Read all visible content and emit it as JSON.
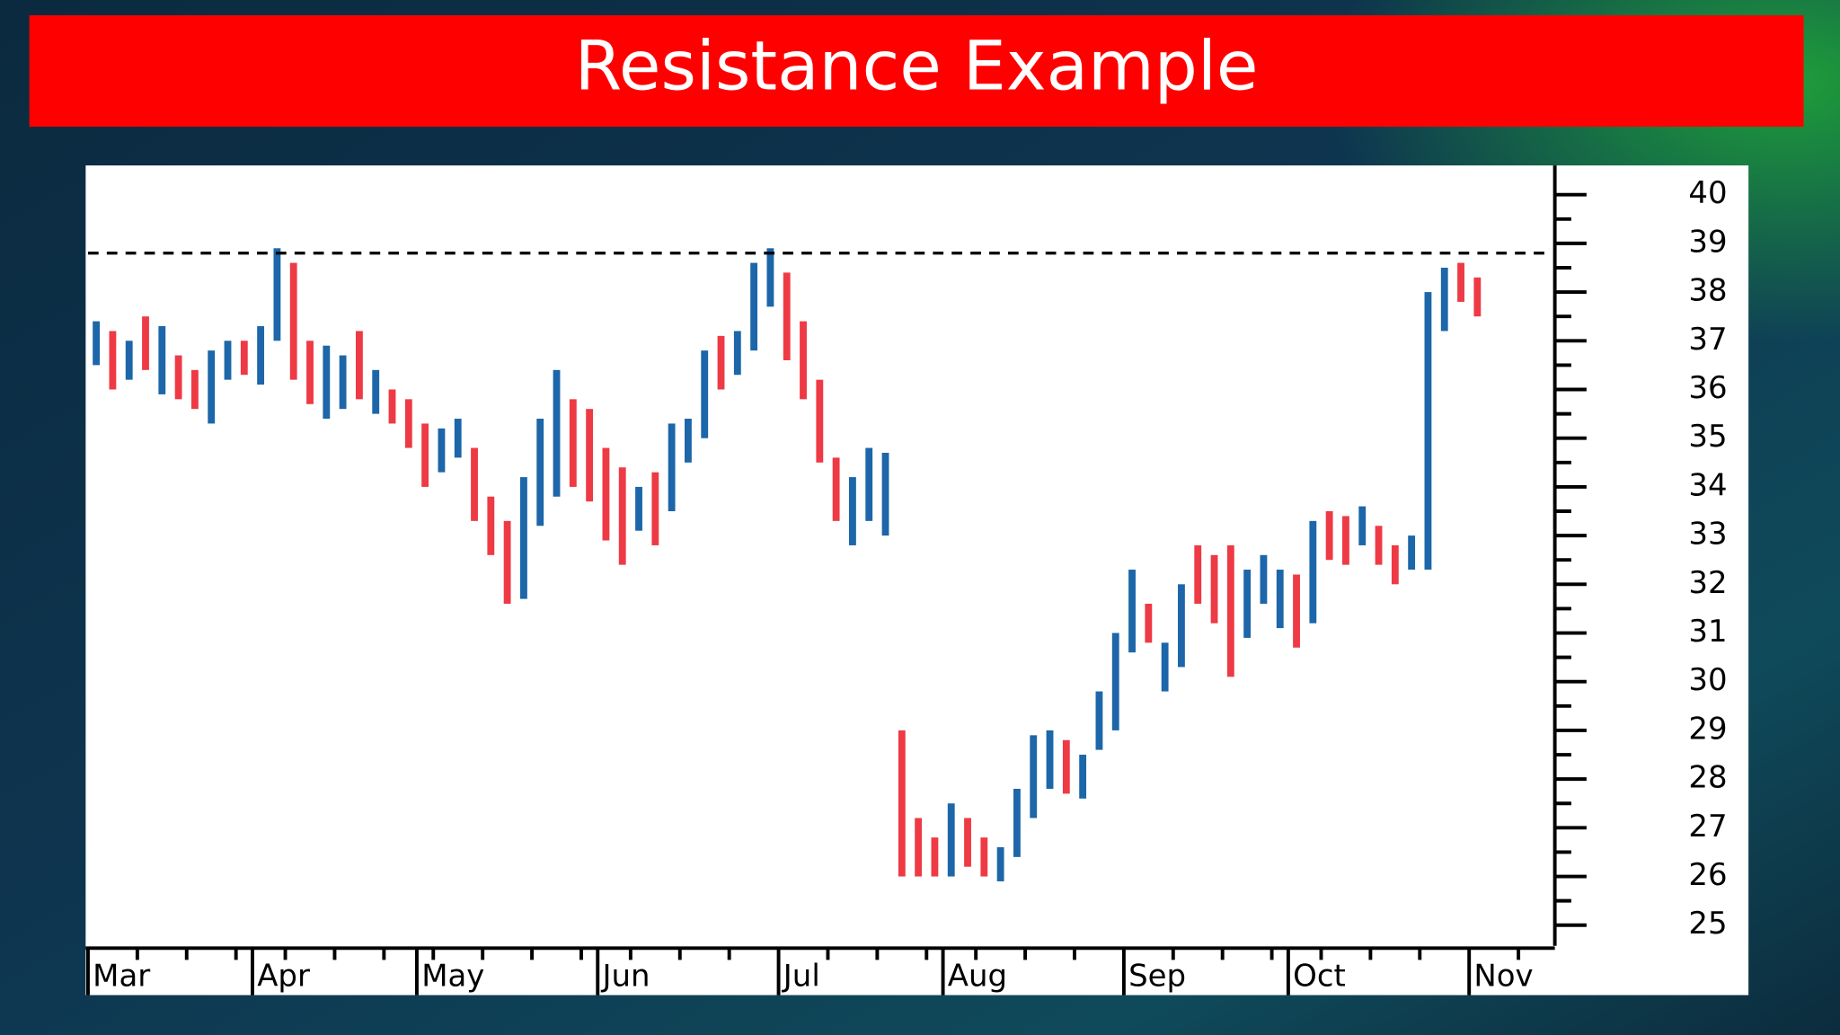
{
  "chart_data": {
    "type": "range_bar",
    "title": "Resistance Example",
    "categories": [
      "Mar",
      null,
      null,
      null,
      null,
      null,
      null,
      null,
      null,
      null,
      "Apr",
      null,
      null,
      null,
      null,
      null,
      null,
      null,
      null,
      null,
      "May",
      null,
      null,
      null,
      null,
      null,
      null,
      null,
      null,
      null,
      null,
      "Jun",
      null,
      null,
      null,
      null,
      null,
      null,
      null,
      null,
      null,
      null,
      "Jul",
      null,
      null,
      null,
      null,
      null,
      null,
      null,
      null,
      null,
      "Aug",
      null,
      null,
      null,
      null,
      null,
      null,
      null,
      null,
      null,
      null,
      "Sep",
      null,
      null,
      null,
      null,
      null,
      null,
      null,
      null,
      null,
      "Oct",
      null,
      null,
      null,
      null,
      null,
      null,
      null,
      null,
      null,
      null,
      "Nov",
      null,
      null,
      null,
      null
    ],
    "high": [
      37.4,
      37.2,
      37.0,
      37.5,
      37.3,
      36.7,
      36.4,
      36.8,
      37.0,
      37.0,
      37.3,
      38.9,
      38.6,
      37.0,
      36.9,
      36.7,
      37.2,
      36.4,
      36.0,
      35.8,
      35.3,
      35.2,
      35.4,
      34.8,
      33.8,
      33.3,
      34.2,
      35.4,
      36.4,
      35.8,
      35.6,
      34.8,
      34.4,
      34.0,
      34.3,
      35.3,
      35.4,
      36.8,
      37.1,
      37.2,
      38.6,
      38.9,
      38.4,
      37.4,
      36.2,
      34.6,
      34.2,
      34.8,
      34.7,
      29.0,
      27.2,
      26.8,
      27.5,
      27.2,
      26.8,
      26.6,
      27.8,
      28.9,
      29.0,
      28.8,
      28.5,
      29.8,
      31.0,
      32.3,
      31.6,
      30.8,
      32.0,
      32.8,
      32.6,
      32.8,
      32.3,
      32.6,
      32.3,
      32.2,
      33.3,
      33.5,
      33.4,
      33.6,
      33.2,
      32.8,
      33.0,
      38.0,
      38.5,
      38.6,
      38.3,
      null,
      null,
      null,
      null
    ],
    "low": [
      36.5,
      36.0,
      36.2,
      36.4,
      35.9,
      35.8,
      35.6,
      35.3,
      36.2,
      36.3,
      36.1,
      37.0,
      36.2,
      35.7,
      35.4,
      35.6,
      35.8,
      35.5,
      35.3,
      34.8,
      34.0,
      34.3,
      34.6,
      33.3,
      32.6,
      31.6,
      31.7,
      33.2,
      33.8,
      34.0,
      33.7,
      32.9,
      32.4,
      33.1,
      32.8,
      33.5,
      34.5,
      35.0,
      36.0,
      36.3,
      36.8,
      37.7,
      36.6,
      35.8,
      34.5,
      33.3,
      32.8,
      33.3,
      33.0,
      26.0,
      26.0,
      26.0,
      26.0,
      26.2,
      26.0,
      25.9,
      26.4,
      27.2,
      27.8,
      27.7,
      27.6,
      28.6,
      29.0,
      30.6,
      30.8,
      29.8,
      30.3,
      31.6,
      31.2,
      30.1,
      30.9,
      31.6,
      31.1,
      30.7,
      31.2,
      32.5,
      32.4,
      32.8,
      32.4,
      32.0,
      32.3,
      32.3,
      37.2,
      37.8,
      37.5,
      null,
      null,
      null,
      null
    ],
    "colors": [
      "#1c66a9",
      "#ee3a45",
      "#1c66a9",
      "#ee3a45",
      "#1c66a9",
      "#ee3a45",
      "#ee3a45",
      "#1c66a9",
      "#1c66a9",
      "#ee3a45",
      "#1c66a9",
      "#1c66a9",
      "#ee3a45",
      "#ee3a45",
      "#1c66a9",
      "#1c66a9",
      "#ee3a45",
      "#1c66a9",
      "#ee3a45",
      "#ee3a45",
      "#ee3a45",
      "#1c66a9",
      "#1c66a9",
      "#ee3a45",
      "#ee3a45",
      "#ee3a45",
      "#1c66a9",
      "#1c66a9",
      "#1c66a9",
      "#ee3a45",
      "#ee3a45",
      "#ee3a45",
      "#ee3a45",
      "#1c66a9",
      "#ee3a45",
      "#1c66a9",
      "#1c66a9",
      "#1c66a9",
      "#ee3a45",
      "#1c66a9",
      "#1c66a9",
      "#1c66a9",
      "#ee3a45",
      "#ee3a45",
      "#ee3a45",
      "#ee3a45",
      "#1c66a9",
      "#1c66a9",
      "#1c66a9",
      "#ee3a45",
      "#ee3a45",
      "#ee3a45",
      "#1c66a9",
      "#ee3a45",
      "#ee3a45",
      "#1c66a9",
      "#1c66a9",
      "#1c66a9",
      "#1c66a9",
      "#ee3a45",
      "#1c66a9",
      "#1c66a9",
      "#1c66a9",
      "#1c66a9",
      "#ee3a45",
      "#1c66a9",
      "#1c66a9",
      "#ee3a45",
      "#ee3a45",
      "#ee3a45",
      "#1c66a9",
      "#1c66a9",
      "#1c66a9",
      "#ee3a45",
      "#1c66a9",
      "#ee3a45",
      "#ee3a45",
      "#1c66a9",
      "#ee3a45",
      "#ee3a45",
      "#1c66a9",
      "#1c66a9",
      "#1c66a9",
      "#ee3a45",
      "#ee3a45",
      null,
      null,
      null,
      null
    ],
    "ylim": [
      24.6,
      40.6
    ],
    "yticks": [
      25,
      26,
      27,
      28,
      29,
      30,
      31,
      32,
      33,
      34,
      35,
      36,
      37,
      38,
      39,
      40
    ],
    "y_axis_side": "right",
    "resistance": 38.8
  }
}
